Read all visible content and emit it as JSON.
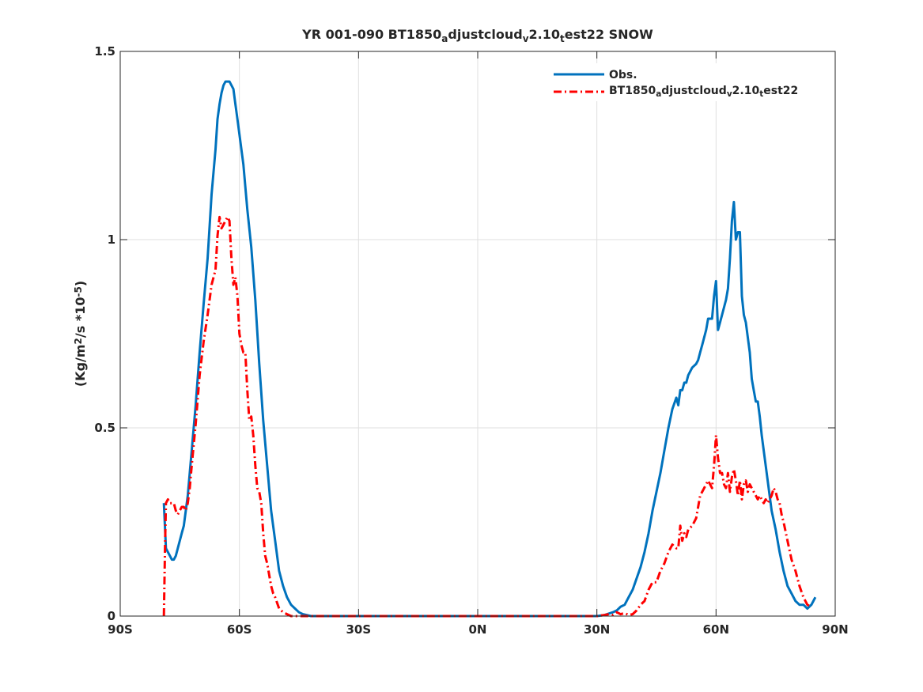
{
  "chart_data": {
    "type": "line",
    "title": "YR 001-090 BT1850_adjustcloud_v2.10_test22 SNOW",
    "ylabel": "(Kg/m^2/s *10^-5)",
    "xlabel": "",
    "xlim": [
      -90,
      90
    ],
    "ylim": [
      0,
      1.5
    ],
    "x_ticks": [
      -90,
      -60,
      -30,
      0,
      30,
      60,
      90
    ],
    "x_tick_labels": [
      "90S",
      "60S",
      "30S",
      "0N",
      "30N",
      "60N",
      "90N"
    ],
    "y_ticks": [
      0,
      0.5,
      1,
      1.5
    ],
    "y_tick_labels": [
      "0",
      "0.5",
      "1",
      "1.5"
    ],
    "grid": true,
    "legend_position": "top-right",
    "series": [
      {
        "name": "Obs.",
        "color": "#0072BD",
        "style": "solid",
        "x": [
          -79,
          -78.5,
          -78,
          -77.5,
          -77,
          -76.5,
          -76,
          -75.5,
          -75,
          -74.5,
          -74,
          -73.5,
          -73,
          -72.5,
          -72,
          -71,
          -70,
          -69,
          -68,
          -67,
          -66,
          -65.5,
          -65,
          -64.5,
          -64,
          -63.5,
          -63,
          -62.5,
          -62,
          -61.5,
          -61,
          -60.5,
          -60,
          -59.5,
          -59,
          -58,
          -57,
          -56,
          -55,
          -54,
          -53,
          -52,
          -51,
          -50,
          -49,
          -48,
          -47,
          -46,
          -45,
          -44,
          -42,
          -40,
          -35,
          -30,
          -20,
          -10,
          0,
          10,
          20,
          30,
          32,
          34,
          35,
          36,
          37,
          38,
          39,
          40,
          41,
          42,
          43,
          44,
          45,
          46,
          47,
          48,
          49,
          50,
          50.5,
          51,
          51.5,
          52,
          52.5,
          53,
          54,
          55,
          55.5,
          56,
          56.5,
          57,
          57.5,
          58,
          58.5,
          59,
          59.5,
          60,
          60.5,
          61,
          61.5,
          62,
          62.5,
          63,
          63.5,
          64,
          64.5,
          65,
          65.5,
          66,
          66.5,
          67,
          67.5,
          68,
          68.5,
          69,
          69.5,
          70,
          70.5,
          71,
          71.5,
          72,
          73,
          74,
          75,
          76,
          77,
          78,
          79,
          80,
          81,
          82,
          83,
          84,
          85
        ],
        "y": [
          0.3,
          0.18,
          0.17,
          0.16,
          0.15,
          0.15,
          0.16,
          0.18,
          0.2,
          0.22,
          0.24,
          0.28,
          0.32,
          0.38,
          0.44,
          0.56,
          0.7,
          0.83,
          0.95,
          1.12,
          1.24,
          1.32,
          1.36,
          1.39,
          1.41,
          1.42,
          1.42,
          1.42,
          1.41,
          1.4,
          1.36,
          1.32,
          1.28,
          1.24,
          1.2,
          1.08,
          0.98,
          0.84,
          0.67,
          0.52,
          0.4,
          0.28,
          0.2,
          0.12,
          0.08,
          0.05,
          0.03,
          0.02,
          0.01,
          0.005,
          0,
          0,
          0,
          0,
          0,
          0,
          0,
          0,
          0,
          0,
          0.003,
          0.01,
          0.015,
          0.025,
          0.03,
          0.05,
          0.07,
          0.1,
          0.13,
          0.17,
          0.22,
          0.28,
          0.33,
          0.38,
          0.44,
          0.5,
          0.55,
          0.58,
          0.56,
          0.6,
          0.6,
          0.62,
          0.62,
          0.64,
          0.66,
          0.67,
          0.68,
          0.7,
          0.72,
          0.74,
          0.76,
          0.79,
          0.79,
          0.79,
          0.85,
          0.89,
          0.76,
          0.78,
          0.8,
          0.82,
          0.84,
          0.87,
          0.95,
          1.05,
          1.1,
          1.0,
          1.02,
          1.02,
          0.85,
          0.8,
          0.78,
          0.74,
          0.7,
          0.63,
          0.6,
          0.57,
          0.57,
          0.53,
          0.48,
          0.44,
          0.36,
          0.28,
          0.23,
          0.17,
          0.12,
          0.08,
          0.06,
          0.04,
          0.03,
          0.03,
          0.02,
          0.03,
          0.05
        ]
      },
      {
        "name": "BT1850_adjustcloud_v2.10_test22",
        "color": "#FF0000",
        "style": "dashdot",
        "x": [
          -79,
          -78.7,
          -78.5,
          -78,
          -77.5,
          -77,
          -76.5,
          -76,
          -75.5,
          -75,
          -74.5,
          -74,
          -73.5,
          -73,
          -72.5,
          -72,
          -71,
          -70,
          -69,
          -68,
          -67,
          -66,
          -65.5,
          -65,
          -64.5,
          -64,
          -63.5,
          -63,
          -62.5,
          -62,
          -61.5,
          -61,
          -60.5,
          -60,
          -59.5,
          -59,
          -58.5,
          -58,
          -57.5,
          -57,
          -56.5,
          -56,
          -55.5,
          -55,
          -54.5,
          -54,
          -53.5,
          -53,
          -52.5,
          -52,
          -51.5,
          -51,
          -50,
          -49,
          -48,
          -47,
          -46,
          -45,
          -44,
          -40,
          -30,
          -20,
          -10,
          0,
          10,
          20,
          30,
          32,
          33,
          34,
          35,
          36,
          37,
          38,
          39,
          40,
          41,
          42,
          43,
          44,
          45,
          46,
          47,
          48,
          49,
          50,
          50.5,
          51,
          51.5,
          52,
          52.5,
          53,
          54,
          55,
          55.5,
          56,
          56.5,
          57,
          57.5,
          58,
          58.5,
          59,
          59.5,
          60,
          60.5,
          61,
          61.5,
          62,
          62.5,
          63,
          63.5,
          64,
          64.5,
          65,
          65.5,
          66,
          66.5,
          67,
          67.5,
          68,
          68.5,
          69,
          69.5,
          70,
          70.5,
          71,
          71.5,
          72,
          72.5,
          73,
          73.5,
          74,
          74.5,
          75,
          75.5,
          76,
          76.5,
          77,
          78,
          79,
          80,
          81,
          82,
          83,
          84
        ],
        "y": [
          0,
          0.2,
          0.3,
          0.31,
          0.3,
          0.3,
          0.3,
          0.28,
          0.27,
          0.28,
          0.29,
          0.29,
          0.28,
          0.3,
          0.34,
          0.4,
          0.51,
          0.64,
          0.73,
          0.8,
          0.88,
          0.92,
          1.01,
          1.06,
          1.03,
          1.04,
          1.05,
          1.06,
          1.05,
          0.95,
          0.88,
          0.9,
          0.85,
          0.75,
          0.72,
          0.7,
          0.7,
          0.6,
          0.52,
          0.53,
          0.48,
          0.4,
          0.34,
          0.33,
          0.3,
          0.22,
          0.16,
          0.14,
          0.11,
          0.08,
          0.06,
          0.05,
          0.02,
          0.01,
          0.005,
          0,
          0,
          0,
          0,
          0,
          0,
          0,
          0,
          0,
          0,
          0,
          0,
          0.003,
          0.005,
          0.003,
          0.01,
          0.005,
          0.008,
          0.003,
          0.005,
          0.015,
          0.03,
          0.04,
          0.07,
          0.09,
          0.09,
          0.12,
          0.14,
          0.17,
          0.19,
          0.18,
          0.18,
          0.24,
          0.2,
          0.22,
          0.21,
          0.23,
          0.24,
          0.26,
          0.29,
          0.32,
          0.33,
          0.34,
          0.35,
          0.36,
          0.35,
          0.34,
          0.4,
          0.48,
          0.42,
          0.38,
          0.38,
          0.35,
          0.34,
          0.38,
          0.33,
          0.37,
          0.39,
          0.36,
          0.32,
          0.36,
          0.31,
          0.35,
          0.36,
          0.33,
          0.35,
          0.34,
          0.33,
          0.32,
          0.31,
          0.32,
          0.31,
          0.3,
          0.31,
          0.3,
          0.31,
          0.32,
          0.34,
          0.33,
          0.31,
          0.3,
          0.27,
          0.25,
          0.2,
          0.15,
          0.12,
          0.08,
          0.05,
          0.03,
          0.025
        ]
      }
    ]
  }
}
